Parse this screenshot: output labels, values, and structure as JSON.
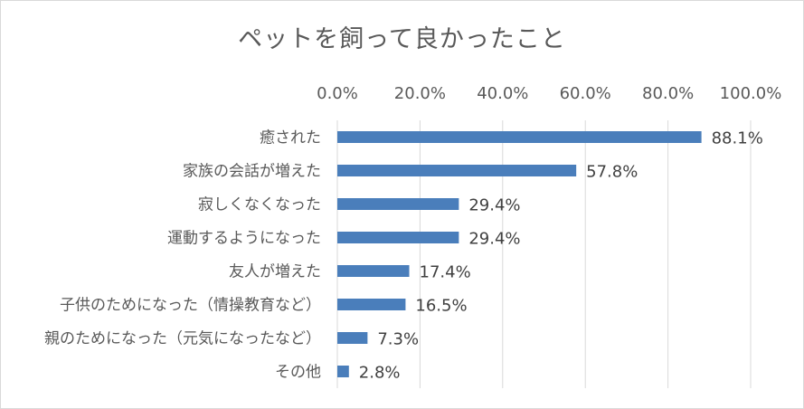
{
  "chart_data": {
    "type": "bar",
    "orientation": "horizontal",
    "title": "ペットを飼って良かったこと",
    "categories": [
      "癒された",
      "家族の会話が増えた",
      "寂しくなくなった",
      "運動するようになった",
      "友人が増えた",
      "子供のためになった（情操教育など）",
      "親のためになった（元気になったなど）",
      "その他"
    ],
    "values": [
      88.1,
      57.8,
      29.4,
      29.4,
      17.4,
      16.5,
      7.3,
      2.8
    ],
    "value_labels": [
      "88.1%",
      "57.8%",
      "29.4%",
      "29.4%",
      "17.4%",
      "16.5%",
      "7.3%",
      "2.8%"
    ],
    "x_ticks": [
      "0.0%",
      "20.0%",
      "40.0%",
      "60.0%",
      "80.0%",
      "100.0%"
    ],
    "xlim": [
      0,
      100
    ],
    "x_axis_position": "top",
    "grid": true,
    "bar_color": "#4a7ebb",
    "gridline_color": "#d9d9d9"
  }
}
